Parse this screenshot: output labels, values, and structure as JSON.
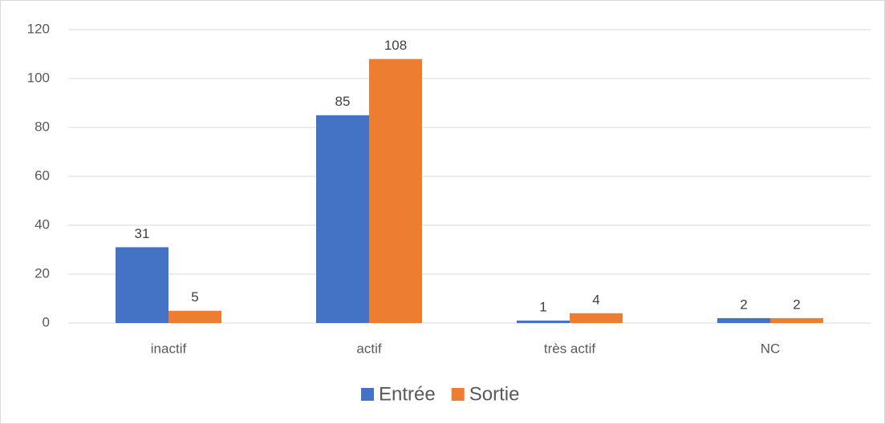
{
  "chart_data": {
    "type": "bar",
    "categories": [
      "inactif",
      "actif",
      "très actif",
      "NC"
    ],
    "series": [
      {
        "name": "Entrée",
        "color": "#4472c4",
        "values": [
          31,
          85,
          1,
          2
        ]
      },
      {
        "name": "Sortie",
        "color": "#ed7d31",
        "values": [
          5,
          108,
          4,
          2
        ]
      }
    ],
    "ylim": [
      0,
      120
    ],
    "yticks": [
      0,
      20,
      40,
      60,
      80,
      100,
      120
    ],
    "grid": true,
    "legend": "bottom"
  }
}
